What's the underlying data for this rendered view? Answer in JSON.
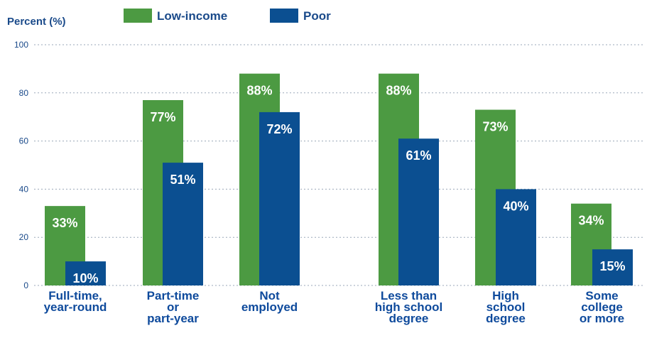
{
  "chart_data": {
    "type": "bar",
    "ylabel": "Percent (%)",
    "ylim": [
      0,
      100
    ],
    "yticks": [
      0,
      20,
      40,
      60,
      80,
      100
    ],
    "grid": true,
    "legend_position": "top",
    "categories": [
      [
        "Full-time,",
        "year-round"
      ],
      [
        "Part-time",
        "or",
        "part-year"
      ],
      [
        "Not",
        "employed"
      ],
      [
        "Less than",
        "high school",
        "degree"
      ],
      [
        "High",
        "school",
        "degree"
      ],
      [
        "Some",
        "college",
        "or more"
      ]
    ],
    "series": [
      {
        "name": "Low-income",
        "color": "#4c9a42",
        "values": [
          33,
          77,
          88,
          88,
          73,
          34
        ],
        "labels": [
          "33%",
          "77%",
          "88%",
          "88%",
          "73%",
          "34%"
        ]
      },
      {
        "name": "Poor",
        "color": "#0b4f91",
        "values": [
          10,
          51,
          72,
          61,
          40,
          15
        ],
        "labels": [
          "10%",
          "51%",
          "72%",
          "61%",
          "40%",
          "15%"
        ]
      }
    ]
  }
}
